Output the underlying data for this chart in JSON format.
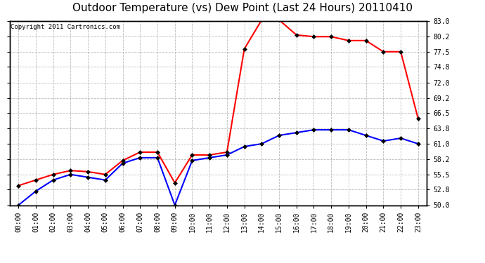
{
  "title": "Outdoor Temperature (vs) Dew Point (Last 24 Hours) 20110410",
  "copyright": "Copyright 2011 Cartronics.com",
  "x_labels": [
    "00:00",
    "01:00",
    "02:00",
    "03:00",
    "04:00",
    "05:00",
    "06:00",
    "07:00",
    "08:00",
    "09:00",
    "10:00",
    "11:00",
    "12:00",
    "13:00",
    "14:00",
    "15:00",
    "16:00",
    "17:00",
    "18:00",
    "19:00",
    "20:00",
    "21:00",
    "22:00",
    "23:00"
  ],
  "temp_data": [
    53.5,
    54.5,
    55.5,
    56.2,
    56.0,
    55.5,
    58.0,
    59.5,
    59.5,
    54.0,
    59.0,
    59.0,
    59.5,
    78.0,
    83.2,
    83.2,
    80.5,
    80.2,
    80.2,
    79.5,
    79.5,
    77.5,
    77.5,
    65.5
  ],
  "dew_data": [
    50.0,
    52.5,
    54.5,
    55.5,
    55.0,
    54.5,
    57.5,
    58.5,
    58.5,
    50.0,
    58.0,
    58.5,
    59.0,
    60.5,
    61.0,
    62.5,
    63.0,
    63.5,
    63.5,
    63.5,
    62.5,
    61.5,
    62.0,
    61.0
  ],
  "temp_color": "#ff0000",
  "dew_color": "#0000ff",
  "bg_color": "#ffffff",
  "grid_color": "#bbbbbb",
  "ylim": [
    50.0,
    83.0
  ],
  "yticks": [
    50.0,
    52.8,
    55.5,
    58.2,
    61.0,
    63.8,
    66.5,
    69.2,
    72.0,
    74.8,
    77.5,
    80.2,
    83.0
  ],
  "ytick_labels": [
    "50.0",
    "52.8",
    "55.5",
    "58.2",
    "61.0",
    "63.8",
    "66.5",
    "69.2",
    "72.0",
    "74.8",
    "77.5",
    "80.2",
    "83.0"
  ],
  "title_fontsize": 11,
  "tick_fontsize": 7,
  "copyright_fontsize": 6.5,
  "marker": "D",
  "marker_size": 3,
  "line_width": 1.5
}
